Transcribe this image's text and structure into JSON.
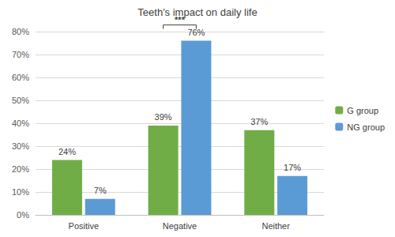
{
  "chart_data": {
    "type": "bar",
    "title": "Teeth's impact on daily life",
    "categories": [
      "Positive",
      "Negative",
      "Neither"
    ],
    "series": [
      {
        "name": "G group",
        "color": "#70ad47",
        "values": [
          24,
          39,
          37
        ],
        "value_labels": [
          "24%",
          "39%",
          "37%"
        ]
      },
      {
        "name": "NG group",
        "color": "#5b9bd5",
        "values": [
          7,
          76,
          17
        ],
        "value_labels": [
          "7%",
          "76%",
          "17%"
        ]
      }
    ],
    "ylim": [
      0,
      80
    ],
    "yticks": [
      {
        "value": 0,
        "label": "0%"
      },
      {
        "value": 10,
        "label": "10%"
      },
      {
        "value": 20,
        "label": "20%"
      },
      {
        "value": 30,
        "label": "30%"
      },
      {
        "value": 40,
        "label": "40%"
      },
      {
        "value": 50,
        "label": "50%"
      },
      {
        "value": 60,
        "label": "60%"
      },
      {
        "value": 70,
        "label": "70%"
      },
      {
        "value": 80,
        "label": "80%"
      }
    ],
    "grid": true,
    "legend": "right",
    "data_labels": true,
    "annotations": [
      {
        "text": "***",
        "category": "Negative"
      }
    ]
  }
}
